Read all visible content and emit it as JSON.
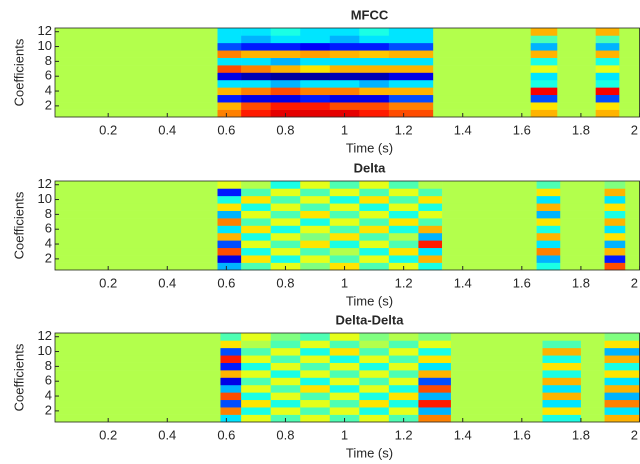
{
  "chart_data": [
    {
      "type": "heatmap",
      "title": "MFCC",
      "xlabel": "Time (s)",
      "ylabel": "Coefficients",
      "colormap": "jet",
      "clim": [
        0,
        1
      ],
      "xlim": [
        0.02,
        2.0
      ],
      "xticks": [
        0.2,
        0.4,
        0.6,
        0.8,
        1,
        1.2,
        1.4,
        1.6,
        1.8,
        2
      ],
      "ylim": [
        0.5,
        12.5
      ],
      "yticks": [
        2,
        4,
        6,
        8,
        10,
        12
      ],
      "y": [
        1,
        2,
        3,
        4,
        5,
        6,
        7,
        8,
        9,
        10,
        11,
        12
      ],
      "x_edges": [
        0.02,
        0.57,
        0.65,
        0.75,
        0.85,
        0.95,
        1.05,
        1.15,
        1.3,
        1.63,
        1.72,
        1.85,
        1.93,
        2.0
      ],
      "values": [
        [
          0.55,
          0.75,
          0.85,
          0.9,
          0.9,
          0.9,
          0.85,
          0.8,
          0.55,
          0.7,
          0.55,
          0.7,
          0.55
        ],
        [
          0.55,
          0.7,
          0.8,
          0.85,
          0.85,
          0.8,
          0.8,
          0.75,
          0.55,
          0.65,
          0.55,
          0.65,
          0.55
        ],
        [
          0.55,
          0.15,
          0.1,
          0.1,
          0.15,
          0.1,
          0.1,
          0.2,
          0.55,
          0.2,
          0.55,
          0.2,
          0.55
        ],
        [
          0.55,
          0.7,
          0.75,
          0.8,
          0.75,
          0.75,
          0.7,
          0.7,
          0.55,
          0.88,
          0.55,
          0.88,
          0.55
        ],
        [
          0.55,
          0.35,
          0.35,
          0.3,
          0.35,
          0.35,
          0.3,
          0.35,
          0.55,
          0.4,
          0.55,
          0.4,
          0.55
        ],
        [
          0.55,
          0.1,
          0.05,
          0.03,
          0.03,
          0.05,
          0.05,
          0.1,
          0.55,
          0.35,
          0.55,
          0.35,
          0.55
        ],
        [
          0.55,
          0.8,
          0.75,
          0.7,
          0.65,
          0.7,
          0.7,
          0.7,
          0.55,
          0.6,
          0.55,
          0.6,
          0.55
        ],
        [
          0.55,
          0.35,
          0.35,
          0.3,
          0.35,
          0.35,
          0.35,
          0.35,
          0.55,
          0.4,
          0.55,
          0.4,
          0.55
        ],
        [
          0.55,
          0.75,
          0.7,
          0.7,
          0.72,
          0.7,
          0.68,
          0.7,
          0.55,
          0.7,
          0.55,
          0.7,
          0.55
        ],
        [
          0.55,
          0.2,
          0.15,
          0.15,
          0.12,
          0.15,
          0.15,
          0.2,
          0.55,
          0.3,
          0.55,
          0.3,
          0.55
        ],
        [
          0.55,
          0.35,
          0.3,
          0.35,
          0.35,
          0.3,
          0.35,
          0.35,
          0.55,
          0.45,
          0.55,
          0.45,
          0.55
        ],
        [
          0.55,
          0.35,
          0.35,
          0.4,
          0.35,
          0.35,
          0.4,
          0.35,
          0.55,
          0.7,
          0.55,
          0.7,
          0.55
        ]
      ]
    },
    {
      "type": "heatmap",
      "title": "Delta",
      "xlabel": "Time (s)",
      "ylabel": "Coefficients",
      "colormap": "jet",
      "clim": [
        0,
        1
      ],
      "xlim": [
        0.02,
        2.0
      ],
      "xticks": [
        0.2,
        0.4,
        0.6,
        0.8,
        1,
        1.2,
        1.4,
        1.6,
        1.8,
        2
      ],
      "ylim": [
        0.5,
        12.5
      ],
      "yticks": [
        2,
        4,
        6,
        8,
        10,
        12
      ],
      "y": [
        1,
        2,
        3,
        4,
        5,
        6,
        7,
        8,
        9,
        10,
        11,
        12
      ],
      "x_edges": [
        0.02,
        0.57,
        0.65,
        0.75,
        0.85,
        0.95,
        1.05,
        1.15,
        1.25,
        1.33,
        1.65,
        1.73,
        1.88,
        1.95,
        2.0
      ],
      "values": [
        [
          0.55,
          0.3,
          0.45,
          0.6,
          0.5,
          0.65,
          0.45,
          0.6,
          0.4,
          0.55,
          0.4,
          0.55,
          0.8,
          0.55
        ],
        [
          0.55,
          0.1,
          0.65,
          0.4,
          0.6,
          0.45,
          0.6,
          0.4,
          0.7,
          0.55,
          0.3,
          0.55,
          0.15,
          0.55
        ],
        [
          0.55,
          0.8,
          0.4,
          0.6,
          0.45,
          0.55,
          0.4,
          0.65,
          0.35,
          0.55,
          0.75,
          0.55,
          0.7,
          0.55
        ],
        [
          0.55,
          0.2,
          0.6,
          0.45,
          0.65,
          0.4,
          0.6,
          0.45,
          0.85,
          0.55,
          0.35,
          0.55,
          0.3,
          0.55
        ],
        [
          0.55,
          0.7,
          0.4,
          0.6,
          0.5,
          0.65,
          0.45,
          0.55,
          0.3,
          0.55,
          0.7,
          0.55,
          0.65,
          0.55
        ],
        [
          0.55,
          0.35,
          0.65,
          0.4,
          0.6,
          0.45,
          0.65,
          0.4,
          0.7,
          0.55,
          0.4,
          0.55,
          0.35,
          0.55
        ],
        [
          0.55,
          0.75,
          0.45,
          0.6,
          0.4,
          0.6,
          0.45,
          0.65,
          0.45,
          0.55,
          0.65,
          0.55,
          0.7,
          0.55
        ],
        [
          0.55,
          0.3,
          0.6,
          0.45,
          0.65,
          0.45,
          0.6,
          0.4,
          0.6,
          0.55,
          0.3,
          0.55,
          0.4,
          0.55
        ],
        [
          0.55,
          0.65,
          0.4,
          0.6,
          0.45,
          0.6,
          0.4,
          0.6,
          0.4,
          0.55,
          0.7,
          0.55,
          0.65,
          0.55
        ],
        [
          0.55,
          0.4,
          0.65,
          0.45,
          0.6,
          0.4,
          0.65,
          0.45,
          0.65,
          0.55,
          0.35,
          0.55,
          0.35,
          0.55
        ],
        [
          0.55,
          0.15,
          0.45,
          0.6,
          0.45,
          0.6,
          0.45,
          0.6,
          0.45,
          0.55,
          0.65,
          0.55,
          0.7,
          0.55
        ],
        [
          0.55,
          0.6,
          0.55,
          0.4,
          0.6,
          0.45,
          0.6,
          0.45,
          0.55,
          0.55,
          0.45,
          0.55,
          0.5,
          0.55
        ]
      ]
    },
    {
      "type": "heatmap",
      "title": "Delta-Delta",
      "xlabel": "Time (s)",
      "ylabel": "Coefficients",
      "colormap": "jet",
      "clim": [
        0,
        1
      ],
      "xlim": [
        0.02,
        2.0
      ],
      "xticks": [
        0.2,
        0.4,
        0.6,
        0.8,
        1,
        1.2,
        1.4,
        1.6,
        1.8,
        2
      ],
      "ylim": [
        0.5,
        12.5
      ],
      "yticks": [
        2,
        4,
        6,
        8,
        10,
        12
      ],
      "y": [
        1,
        2,
        3,
        4,
        5,
        6,
        7,
        8,
        9,
        10,
        11,
        12
      ],
      "x_edges": [
        0.02,
        0.58,
        0.65,
        0.75,
        0.85,
        0.95,
        1.05,
        1.15,
        1.25,
        1.36,
        1.67,
        1.8,
        1.88,
        2.0
      ],
      "values": [
        [
          0.55,
          0.35,
          0.6,
          0.45,
          0.6,
          0.45,
          0.6,
          0.45,
          0.75,
          0.55,
          0.4,
          0.55,
          0.7
        ],
        [
          0.55,
          0.75,
          0.4,
          0.6,
          0.45,
          0.6,
          0.4,
          0.6,
          0.3,
          0.55,
          0.65,
          0.55,
          0.35
        ],
        [
          0.55,
          0.2,
          0.65,
          0.4,
          0.6,
          0.45,
          0.65,
          0.4,
          0.85,
          0.55,
          0.35,
          0.55,
          0.75
        ],
        [
          0.55,
          0.8,
          0.4,
          0.6,
          0.45,
          0.6,
          0.4,
          0.65,
          0.3,
          0.55,
          0.7,
          0.55,
          0.3
        ],
        [
          0.55,
          0.3,
          0.6,
          0.45,
          0.65,
          0.4,
          0.6,
          0.4,
          0.8,
          0.55,
          0.35,
          0.55,
          0.7
        ],
        [
          0.55,
          0.1,
          0.45,
          0.6,
          0.4,
          0.6,
          0.45,
          0.6,
          0.2,
          0.55,
          0.7,
          0.55,
          0.35
        ],
        [
          0.55,
          0.7,
          0.6,
          0.4,
          0.6,
          0.45,
          0.6,
          0.45,
          0.7,
          0.55,
          0.4,
          0.55,
          0.65
        ],
        [
          0.55,
          0.15,
          0.4,
          0.6,
          0.45,
          0.6,
          0.4,
          0.6,
          0.35,
          0.55,
          0.65,
          0.55,
          0.4
        ],
        [
          0.55,
          0.85,
          0.6,
          0.45,
          0.6,
          0.4,
          0.6,
          0.45,
          0.65,
          0.55,
          0.4,
          0.55,
          0.7
        ],
        [
          0.55,
          0.2,
          0.45,
          0.6,
          0.4,
          0.65,
          0.45,
          0.6,
          0.4,
          0.55,
          0.7,
          0.55,
          0.3
        ],
        [
          0.55,
          0.65,
          0.55,
          0.45,
          0.6,
          0.45,
          0.55,
          0.45,
          0.6,
          0.55,
          0.45,
          0.55,
          0.65
        ],
        [
          0.55,
          0.45,
          0.6,
          0.5,
          0.45,
          0.6,
          0.5,
          0.55,
          0.5,
          0.55,
          0.55,
          0.55,
          0.5
        ]
      ]
    }
  ]
}
